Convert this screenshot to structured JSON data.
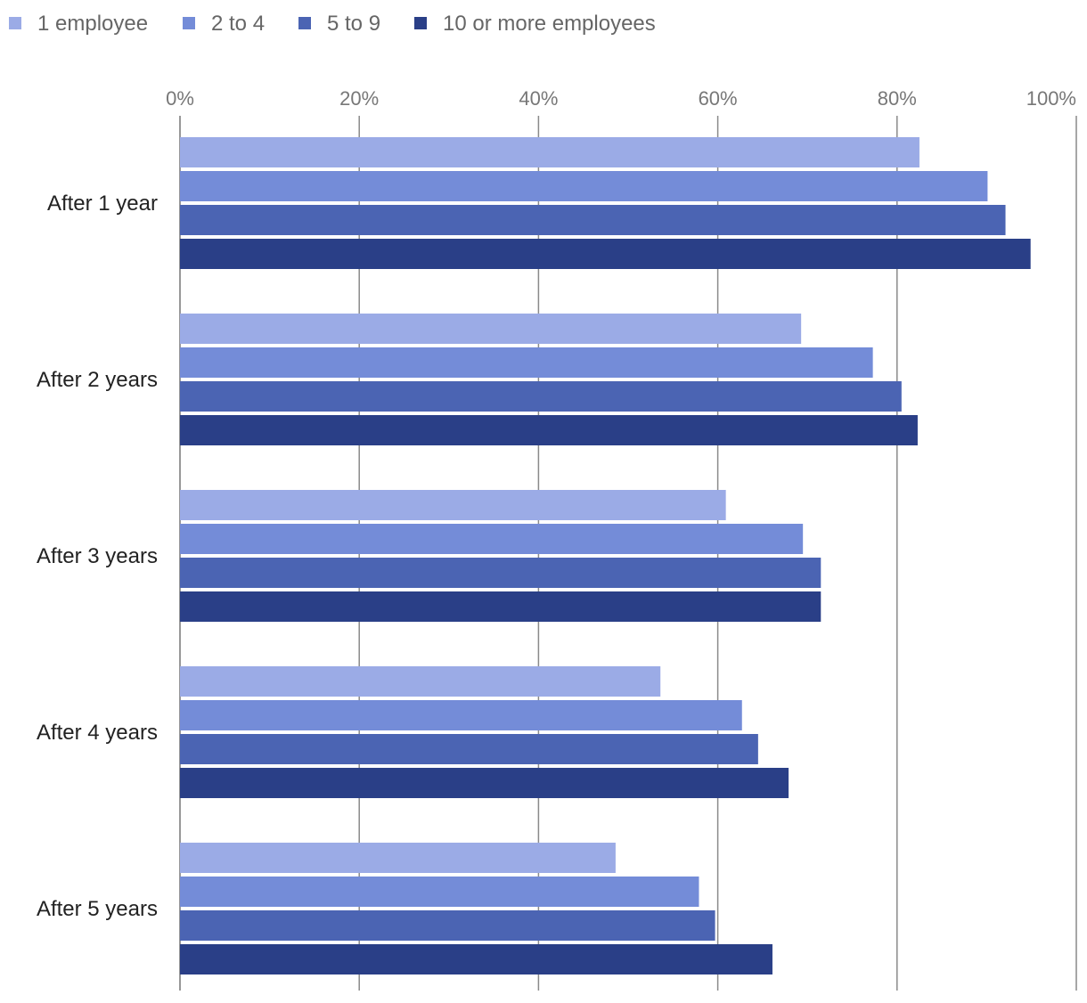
{
  "chart_data": {
    "type": "bar",
    "orientation": "horizontal",
    "categories": [
      "After 1 year",
      "After 2 years",
      "After 3 years",
      "After 4 years",
      "After 5 years"
    ],
    "series": [
      {
        "name": "1 employee",
        "color": "#9babe6",
        "values": [
          82.5,
          69.3,
          60.9,
          53.6,
          48.6
        ]
      },
      {
        "name": "2 to 4",
        "color": "#748cd8",
        "values": [
          90.1,
          77.3,
          69.5,
          62.7,
          57.9
        ]
      },
      {
        "name": "5 to 9",
        "color": "#4b64b3",
        "values": [
          92.1,
          80.5,
          71.5,
          64.5,
          59.7
        ]
      },
      {
        "name": "10 or more employees",
        "color": "#2a3f87",
        "values": [
          94.9,
          82.3,
          71.5,
          67.9,
          66.1
        ]
      }
    ],
    "xlim": [
      0,
      100
    ],
    "ticks": [
      0,
      20,
      40,
      60,
      80,
      100
    ],
    "tick_labels": [
      "0%",
      "20%",
      "40%",
      "60%",
      "80%",
      "100%"
    ],
    "grid": true,
    "legend_position": "top-left",
    "title": "",
    "xlabel": "",
    "ylabel": ""
  }
}
